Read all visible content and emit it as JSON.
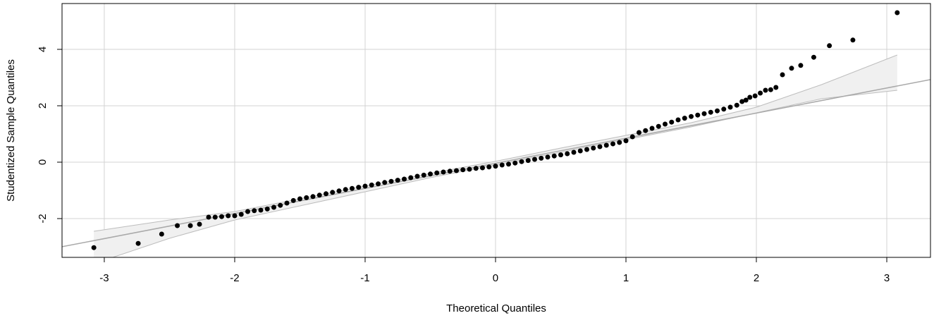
{
  "chart_data": {
    "type": "scatter",
    "xlabel": "Theoretical Quantiles",
    "ylabel": "Studentized Sample Quantiles",
    "xlim": [
      -3.324,
      3.335
    ],
    "ylim": [
      -3.375,
      5.625
    ],
    "xticks": [
      -3,
      -2,
      -1,
      0,
      1,
      2,
      3
    ],
    "yticks": [
      -2,
      0,
      2,
      4
    ],
    "grid": true,
    "grid_color": "#d3d3d3",
    "reference_line": {
      "intercept": -0.04,
      "slope": 0.89,
      "color": "#a9a9a9"
    },
    "envelope": {
      "color": "#f0f0f0",
      "edge_color": "#bdbdbd",
      "x": [
        -3.08,
        -2.5,
        -2,
        -1.5,
        -1,
        -0.5,
        0,
        0.5,
        1,
        1.5,
        2,
        2.5,
        3.08
      ],
      "upper": [
        -2.45,
        -2.05,
        -1.75,
        -1.3,
        -0.85,
        -0.4,
        0.03,
        0.5,
        0.95,
        1.4,
        1.95,
        2.75,
        3.8
      ],
      "lower": [
        -3.6,
        -2.7,
        -2.05,
        -1.55,
        -1.05,
        -0.55,
        -0.1,
        0.35,
        0.8,
        1.25,
        1.75,
        2.25,
        2.55
      ]
    },
    "series": [
      {
        "color": "#000000",
        "x": [
          -3.08,
          -2.74,
          -2.56,
          -2.44,
          -2.34,
          -2.27,
          -2.2,
          -2.15,
          -2.1,
          -2.05,
          -2.0,
          -1.95,
          -1.9,
          -1.85,
          -1.8,
          -1.75,
          -1.7,
          -1.65,
          -1.6,
          -1.55,
          -1.5,
          -1.45,
          -1.4,
          -1.35,
          -1.3,
          -1.25,
          -1.2,
          -1.15,
          -1.1,
          -1.05,
          -1.0,
          -0.95,
          -0.9,
          -0.85,
          -0.8,
          -0.75,
          -0.7,
          -0.65,
          -0.6,
          -0.55,
          -0.5,
          -0.45,
          -0.4,
          -0.35,
          -0.3,
          -0.25,
          -0.2,
          -0.15,
          -0.1,
          -0.05,
          0,
          0.05,
          0.1,
          0.15,
          0.2,
          0.25,
          0.3,
          0.35,
          0.4,
          0.45,
          0.5,
          0.55,
          0.6,
          0.65,
          0.7,
          0.75,
          0.8,
          0.85,
          0.9,
          0.95,
          1.0,
          1.05,
          1.1,
          1.15,
          1.2,
          1.25,
          1.3,
          1.35,
          1.4,
          1.45,
          1.5,
          1.55,
          1.6,
          1.65,
          1.7,
          1.75,
          1.8,
          1.85,
          1.89,
          1.92,
          1.95,
          1.99,
          2.03,
          2.07,
          2.11,
          2.15,
          2.2,
          2.27,
          2.34,
          2.44,
          2.56,
          2.74,
          3.08
        ],
        "values": [
          -3.03,
          -2.88,
          -2.55,
          -2.25,
          -2.25,
          -2.2,
          -1.95,
          -1.95,
          -1.93,
          -1.9,
          -1.9,
          -1.85,
          -1.75,
          -1.72,
          -1.7,
          -1.66,
          -1.6,
          -1.53,
          -1.45,
          -1.36,
          -1.3,
          -1.26,
          -1.22,
          -1.17,
          -1.12,
          -1.07,
          -1.02,
          -0.97,
          -0.93,
          -0.89,
          -0.85,
          -0.81,
          -0.77,
          -0.72,
          -0.68,
          -0.64,
          -0.6,
          -0.55,
          -0.5,
          -0.46,
          -0.42,
          -0.38,
          -0.35,
          -0.32,
          -0.3,
          -0.27,
          -0.25,
          -0.22,
          -0.2,
          -0.17,
          -0.14,
          -0.1,
          -0.07,
          -0.03,
          0.02,
          0.06,
          0.1,
          0.14,
          0.18,
          0.22,
          0.26,
          0.3,
          0.35,
          0.4,
          0.45,
          0.5,
          0.55,
          0.6,
          0.65,
          0.7,
          0.76,
          0.9,
          1.05,
          1.12,
          1.2,
          1.27,
          1.35,
          1.42,
          1.5,
          1.56,
          1.62,
          1.67,
          1.72,
          1.77,
          1.82,
          1.88,
          1.95,
          2.02,
          2.15,
          2.2,
          2.3,
          2.35,
          2.45,
          2.55,
          2.57,
          2.65,
          3.1,
          3.33,
          3.43,
          3.72,
          4.13,
          4.33,
          5.3
        ]
      }
    ]
  }
}
